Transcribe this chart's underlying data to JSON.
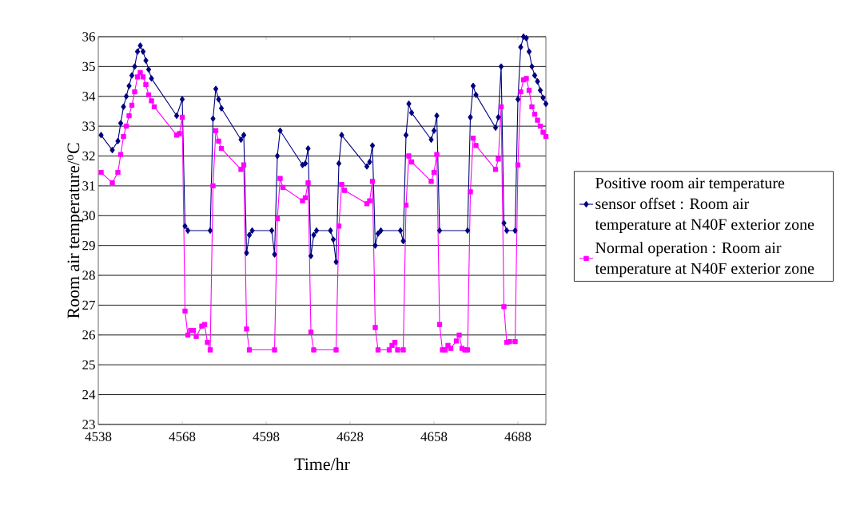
{
  "chart_data": {
    "type": "line",
    "xlabel": "Time/hr",
    "ylabel": "Room air temperature/$^{o}$C",
    "xlim": [
      4538,
      4698
    ],
    "ylim": [
      23,
      36
    ],
    "xticks": [
      4538,
      4568,
      4598,
      4628,
      4658,
      4688
    ],
    "yticks": [
      23,
      24,
      25,
      26,
      27,
      28,
      29,
      30,
      31,
      32,
      33,
      34,
      35,
      36
    ],
    "grid": "y",
    "legend": "right",
    "line_style": "solid",
    "series": [
      {
        "name": "Positive room air temperature sensor offset : Room air temperature at N40F exterior zone",
        "color": "#000080",
        "marker": "diamond",
        "x": [
          4539,
          4543,
          4545,
          4546,
          4547,
          4548,
          4549,
          4550,
          4551,
          4552,
          4553,
          4554,
          4555,
          4556,
          4557,
          4566,
          4568,
          4569,
          4570,
          4578,
          4579,
          4580,
          4581,
          4582,
          4589,
          4590,
          4591,
          4592,
          4593,
          4600,
          4601,
          4602,
          4603,
          4611,
          4612,
          4613,
          4614,
          4615,
          4616,
          4621,
          4622,
          4623,
          4624,
          4625,
          4634,
          4635,
          4636,
          4637,
          4638,
          4639,
          4646,
          4647,
          4648,
          4649,
          4650,
          4657,
          4658,
          4659,
          4660,
          4670,
          4671,
          4672,
          4673,
          4680,
          4681,
          4682,
          4683,
          4684,
          4687,
          4688,
          4689,
          4690,
          4691,
          4692,
          4693,
          4694,
          4695,
          4696,
          4697,
          4698
        ],
        "values": [
          32.7,
          32.2,
          32.5,
          33.1,
          33.65,
          34.0,
          34.35,
          34.7,
          35.0,
          35.5,
          35.7,
          35.5,
          35.2,
          34.9,
          34.6,
          33.35,
          33.9,
          29.65,
          29.5,
          29.5,
          33.25,
          34.25,
          33.9,
          33.6,
          32.55,
          32.7,
          28.75,
          29.35,
          29.5,
          29.5,
          28.7,
          32.0,
          32.85,
          31.7,
          31.75,
          32.25,
          28.65,
          29.35,
          29.5,
          29.5,
          29.2,
          28.45,
          31.75,
          32.7,
          31.65,
          31.8,
          32.35,
          29.0,
          29.4,
          29.5,
          29.5,
          29.15,
          32.7,
          33.75,
          33.45,
          32.55,
          32.85,
          33.35,
          29.5,
          29.5,
          33.3,
          34.35,
          34.05,
          32.95,
          33.3,
          35.0,
          29.75,
          29.5,
          29.5,
          33.9,
          35.65,
          36.0,
          35.95,
          35.5,
          35.0,
          34.7,
          34.5,
          34.2,
          33.95,
          33.75
        ]
      },
      {
        "name": "Normal operation : Room air temperature at N40F exterior zone",
        "color": "#ff00ff",
        "marker": "square",
        "x": [
          4539,
          4543,
          4545,
          4546,
          4547,
          4548,
          4549,
          4550,
          4551,
          4552,
          4553,
          4554,
          4555,
          4556,
          4557,
          4558,
          4566,
          4567,
          4568,
          4569,
          4570,
          4571,
          4572,
          4573,
          4575,
          4576,
          4577,
          4578,
          4579,
          4580,
          4581,
          4582,
          4589,
          4590,
          4591,
          4592,
          4601,
          4602,
          4603,
          4604,
          4611,
          4612,
          4613,
          4614,
          4615,
          4623,
          4624,
          4625,
          4626,
          4634,
          4635,
          4636,
          4637,
          4638,
          4642,
          4643,
          4644,
          4645,
          4647,
          4648,
          4649,
          4650,
          4657,
          4658,
          4659,
          4660,
          4661,
          4662,
          4663,
          4664,
          4666,
          4667,
          4668,
          4669,
          4670,
          4671,
          4672,
          4673,
          4680,
          4681,
          4682,
          4683,
          4684,
          4685,
          4687,
          4688,
          4689,
          4690,
          4691,
          4692,
          4693,
          4694,
          4695,
          4696,
          4697,
          4698
        ],
        "values": [
          31.45,
          31.1,
          31.45,
          32.05,
          32.65,
          33.0,
          33.35,
          33.7,
          34.15,
          34.65,
          34.8,
          34.65,
          34.4,
          34.05,
          33.85,
          33.65,
          32.7,
          32.75,
          33.3,
          26.8,
          26.0,
          26.15,
          26.15,
          25.95,
          26.3,
          26.35,
          25.75,
          25.5,
          31.0,
          32.85,
          32.5,
          32.25,
          31.55,
          31.7,
          26.2,
          25.5,
          25.5,
          29.9,
          31.25,
          30.95,
          30.5,
          30.6,
          31.1,
          26.1,
          25.5,
          25.5,
          29.65,
          31.05,
          30.85,
          30.4,
          30.5,
          31.15,
          26.25,
          25.5,
          25.5,
          25.65,
          25.75,
          25.5,
          25.5,
          30.35,
          32.0,
          31.8,
          31.15,
          31.45,
          32.05,
          26.35,
          25.5,
          25.5,
          25.65,
          25.55,
          25.8,
          26.0,
          25.55,
          25.5,
          25.5,
          30.8,
          32.6,
          32.35,
          31.55,
          31.9,
          33.65,
          26.95,
          25.75,
          25.78,
          25.78,
          31.7,
          34.15,
          34.55,
          34.6,
          34.2,
          33.65,
          33.4,
          33.2,
          33.0,
          32.8,
          32.65
        ]
      }
    ]
  }
}
